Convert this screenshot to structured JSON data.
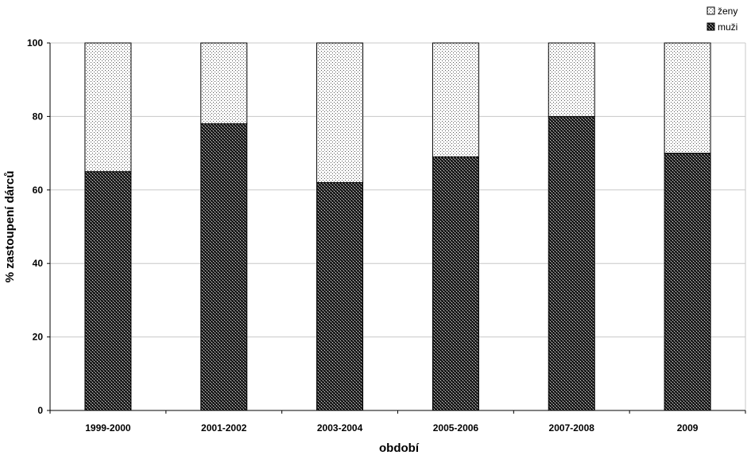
{
  "chart_data": {
    "type": "bar",
    "stacked": true,
    "categories": [
      "1999-2000",
      "2001-2002",
      "2003-2004",
      "2005-2006",
      "2007-2008",
      "2009"
    ],
    "series": [
      {
        "name": "muži",
        "values": [
          65,
          78,
          62,
          69,
          80,
          70
        ],
        "pattern": "crosshatch-dark"
      },
      {
        "name": "ženy",
        "values": [
          35,
          22,
          38,
          31,
          20,
          30
        ],
        "pattern": "dots-light"
      }
    ],
    "title": "",
    "xlabel": "období",
    "ylabel": "% zastoupení dárců",
    "ylim": [
      0,
      100
    ],
    "yticks": [
      0,
      20,
      40,
      60,
      80,
      100
    ],
    "grid": true,
    "legend_position": "top-right",
    "legend_order": [
      "ženy",
      "muži"
    ]
  }
}
